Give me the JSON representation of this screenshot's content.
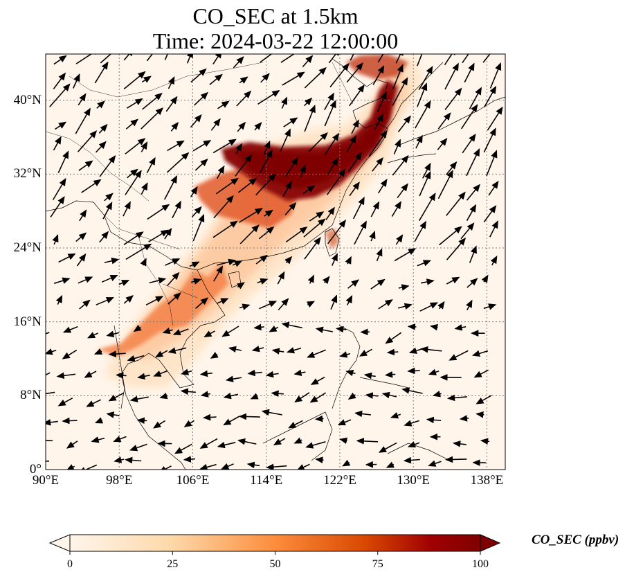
{
  "title_line1": "CO_SEC at 1.5km",
  "title_line2": "Time: 2024-03-22 12:00:00",
  "colorbar": {
    "label": "CO_SEC (ppbv)",
    "ticks": [
      "0",
      "25",
      "50",
      "75",
      "100"
    ],
    "tick_values": [
      0,
      25,
      50,
      75,
      100
    ],
    "colors": [
      "#fff5eb",
      "#fdd8a8",
      "#fc8d3c",
      "#d94801",
      "#a00000",
      "#7f0000"
    ]
  },
  "axes": {
    "lon_range": [
      90,
      140
    ],
    "lat_range": [
      0,
      45
    ],
    "lon_ticks": [
      90,
      98,
      106,
      114,
      122,
      130,
      138
    ],
    "lat_ticks": [
      0,
      8,
      16,
      24,
      32,
      40
    ],
    "lon_labels": [
      "90°E",
      "98°E",
      "106°E",
      "114°E",
      "122°E",
      "130°E",
      "138°E"
    ],
    "lat_labels": [
      "0°",
      "8°N",
      "16°N",
      "24°N",
      "32°N",
      "40°N"
    ],
    "grid": "dotted"
  }
}
